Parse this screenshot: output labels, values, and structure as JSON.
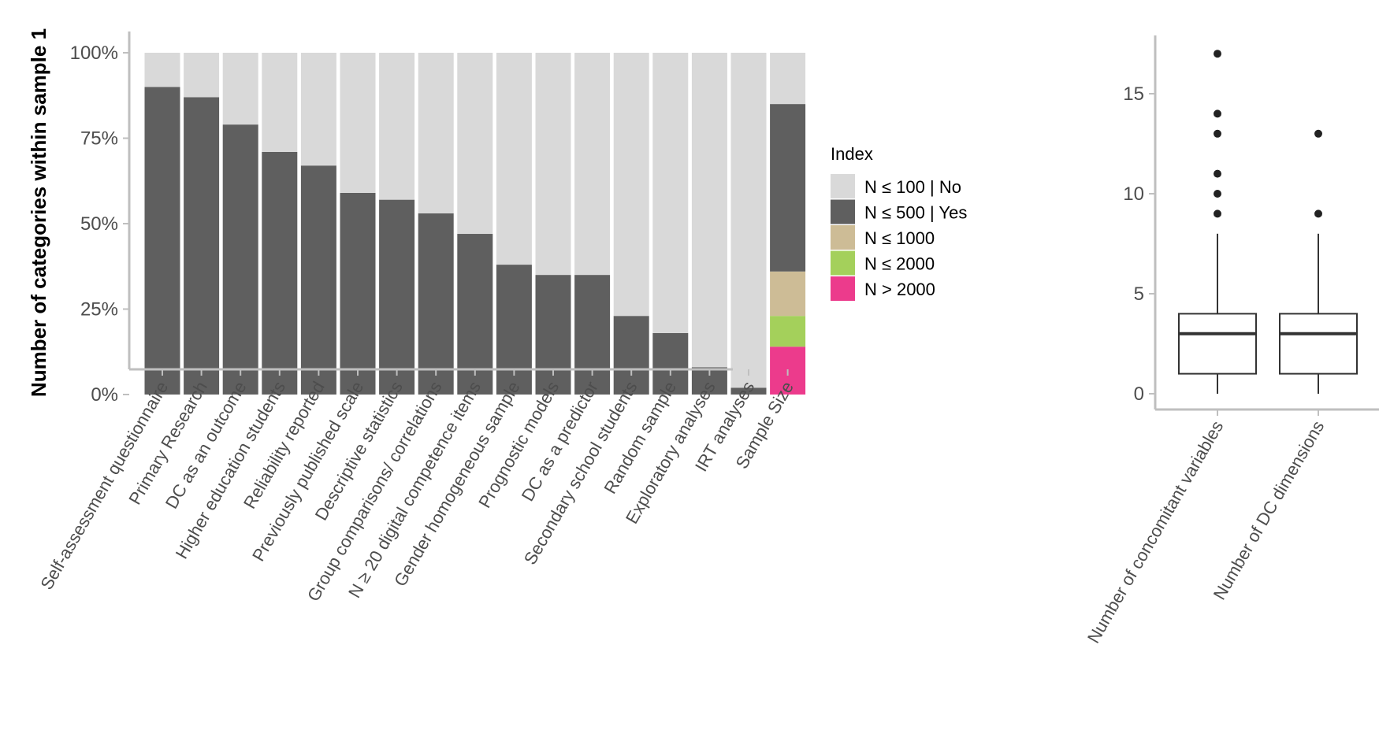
{
  "chart_data": [
    {
      "type": "bar",
      "stacked": true,
      "ylabel": "Number of categories within sample 1",
      "ylim": [
        0,
        1
      ],
      "yticks": [
        "0%",
        "25%",
        "50%",
        "75%",
        "100%"
      ],
      "categories": [
        "Self-assessment questionnaire",
        "Primary Research",
        "DC as an outcome",
        "Higher education students",
        "Reliability reported",
        "Previously published scale",
        "Descriptive statistics",
        "Group comparisons/ correlations",
        "N ≥ 20 digital competence items",
        "Gender homogeneous sample",
        "Prognostic models",
        "DC as a predictor",
        "Secondary school students",
        "Random sample",
        "Exploratory analyses",
        "IRT analyses",
        "Sample Size"
      ],
      "series": [
        {
          "name": "N > 2000",
          "color": "#ec3b8c",
          "values": [
            0,
            0,
            0,
            0,
            0,
            0,
            0,
            0,
            0,
            0,
            0,
            0,
            0,
            0,
            0,
            0,
            0.14
          ]
        },
        {
          "name": "N ≤ 2000",
          "color": "#a4d05b",
          "values": [
            0,
            0,
            0,
            0,
            0,
            0,
            0,
            0,
            0,
            0,
            0,
            0,
            0,
            0,
            0,
            0,
            0.09
          ]
        },
        {
          "name": "N ≤ 1000",
          "color": "#cdbc96",
          "values": [
            0,
            0,
            0,
            0,
            0,
            0,
            0,
            0,
            0,
            0,
            0,
            0,
            0,
            0,
            0,
            0,
            0.13
          ]
        },
        {
          "name": "N ≤ 500 | Yes",
          "color": "#5f5f5f",
          "values": [
            0.9,
            0.87,
            0.79,
            0.71,
            0.67,
            0.59,
            0.57,
            0.53,
            0.47,
            0.38,
            0.35,
            0.35,
            0.23,
            0.18,
            0.08,
            0.02,
            0.49
          ]
        },
        {
          "name": "N ≤ 100 | No",
          "color": "#d9d9d9",
          "values": [
            0.1,
            0.13,
            0.21,
            0.29,
            0.33,
            0.41,
            0.43,
            0.47,
            0.53,
            0.62,
            0.65,
            0.65,
            0.77,
            0.82,
            0.92,
            0.98,
            0.15
          ]
        }
      ],
      "legend": {
        "title": "Index",
        "position": "right",
        "entries": [
          {
            "label": "N ≤ 100 | No",
            "color": "#d9d9d9"
          },
          {
            "label": "N ≤ 500 | Yes",
            "color": "#5f5f5f"
          },
          {
            "label": "N ≤ 1000",
            "color": "#cdbc96"
          },
          {
            "label": "N ≤ 2000",
            "color": "#a4d05b"
          },
          {
            "label": "N > 2000",
            "color": "#ec3b8c"
          }
        ]
      }
    },
    {
      "type": "boxplot",
      "ylim": [
        -0.5,
        17.5
      ],
      "yticks": [
        0,
        5,
        10,
        15
      ],
      "categories": [
        "Number of concomitant variables",
        "Number of DC dimensions"
      ],
      "boxes": [
        {
          "name": "Number of concomitant variables",
          "min": 0,
          "q1": 1,
          "median": 3,
          "q3": 4,
          "max": 8,
          "outliers": [
            9,
            10,
            11,
            13,
            14,
            17
          ]
        },
        {
          "name": "Number of DC dimensions",
          "min": 0,
          "q1": 1,
          "median": 3,
          "q3": 4,
          "max": 8,
          "outliers": [
            9,
            13
          ]
        }
      ]
    }
  ]
}
